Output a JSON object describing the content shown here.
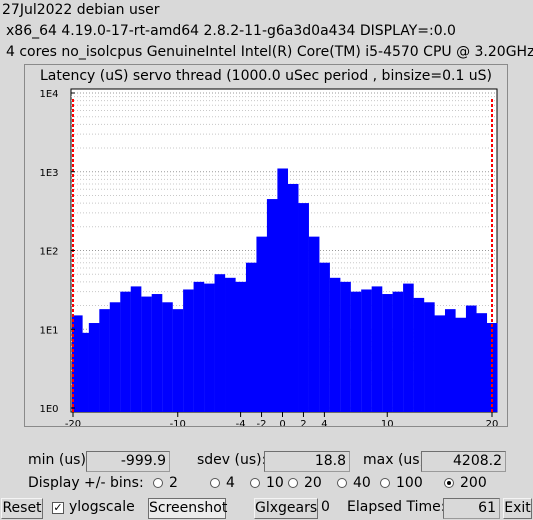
{
  "info": {
    "line1": "27Jul2022 debian user",
    "line2": "x86_64  4.19.0-17-rt-amd64  2.8.2-11-g6a3d0a434  DISPLAY=:0.0",
    "line3": "4 cores  no_isolcpus   GenuineIntel  Intel(R) Core(TM) i5-4570 CPU @ 3.20GHz"
  },
  "chart_data": {
    "type": "bar",
    "title": "Latency (uS) servo thread (1000.0 uSec period , binsize=0.1 uS)",
    "yscale": "log",
    "ylim": [
      1,
      10000
    ],
    "yticks": [
      "1E0",
      "1E1",
      "1E2",
      "1E3",
      "1E4"
    ],
    "xlim": [
      -20,
      20
    ],
    "xticks": [
      "-20",
      "-10",
      "-4",
      "-2",
      "0",
      "2",
      "4",
      "10",
      "20"
    ],
    "xtick_values": [
      -20,
      -10,
      -4,
      -2,
      0,
      2,
      4,
      10,
      20
    ],
    "bar_color": "#0000ff",
    "limit_color": "#ff0000",
    "bins": [
      [
        -20,
        15
      ],
      [
        -19,
        9
      ],
      [
        -18,
        12
      ],
      [
        -17,
        18
      ],
      [
        -16,
        22
      ],
      [
        -15,
        30
      ],
      [
        -14,
        35
      ],
      [
        -13,
        26
      ],
      [
        -12,
        28
      ],
      [
        -11,
        22
      ],
      [
        -10,
        18
      ],
      [
        -9,
        32
      ],
      [
        -8,
        40
      ],
      [
        -7,
        38
      ],
      [
        -6,
        50
      ],
      [
        -5,
        45
      ],
      [
        -4,
        40
      ],
      [
        -3,
        70
      ],
      [
        -2,
        150
      ],
      [
        -1,
        450
      ],
      [
        0,
        1100
      ],
      [
        1,
        700
      ],
      [
        2,
        400
      ],
      [
        3,
        150
      ],
      [
        4,
        70
      ],
      [
        5,
        45
      ],
      [
        6,
        40
      ],
      [
        7,
        30
      ],
      [
        8,
        32
      ],
      [
        9,
        35
      ],
      [
        10,
        28
      ],
      [
        11,
        30
      ],
      [
        12,
        38
      ],
      [
        13,
        25
      ],
      [
        14,
        22
      ],
      [
        15,
        15
      ],
      [
        16,
        18
      ],
      [
        17,
        14
      ],
      [
        18,
        20
      ],
      [
        19,
        16
      ],
      [
        20,
        12
      ]
    ]
  },
  "stats": {
    "min_label": "min (us)",
    "min_value": "-999.9",
    "sdev_label": "sdev (us):",
    "sdev_value": "18.8",
    "max_label": "max (us)",
    "max_value": "4208.2"
  },
  "bins_row": {
    "label": "Display +/- bins:",
    "options": [
      "2",
      "4",
      "10",
      "20",
      "40",
      "100",
      "200"
    ],
    "selected": "200"
  },
  "bottom": {
    "reset_label": "Reset",
    "ylogscale_label": "ylogscale",
    "ylogscale_checked": "✓",
    "screenshot_label": "Screenshot",
    "glxgears_label": "Glxgears",
    "glxgears_value": "0",
    "elapsed_label": "Elapsed Time:",
    "elapsed_value": "61",
    "exit_label": "Exit"
  }
}
